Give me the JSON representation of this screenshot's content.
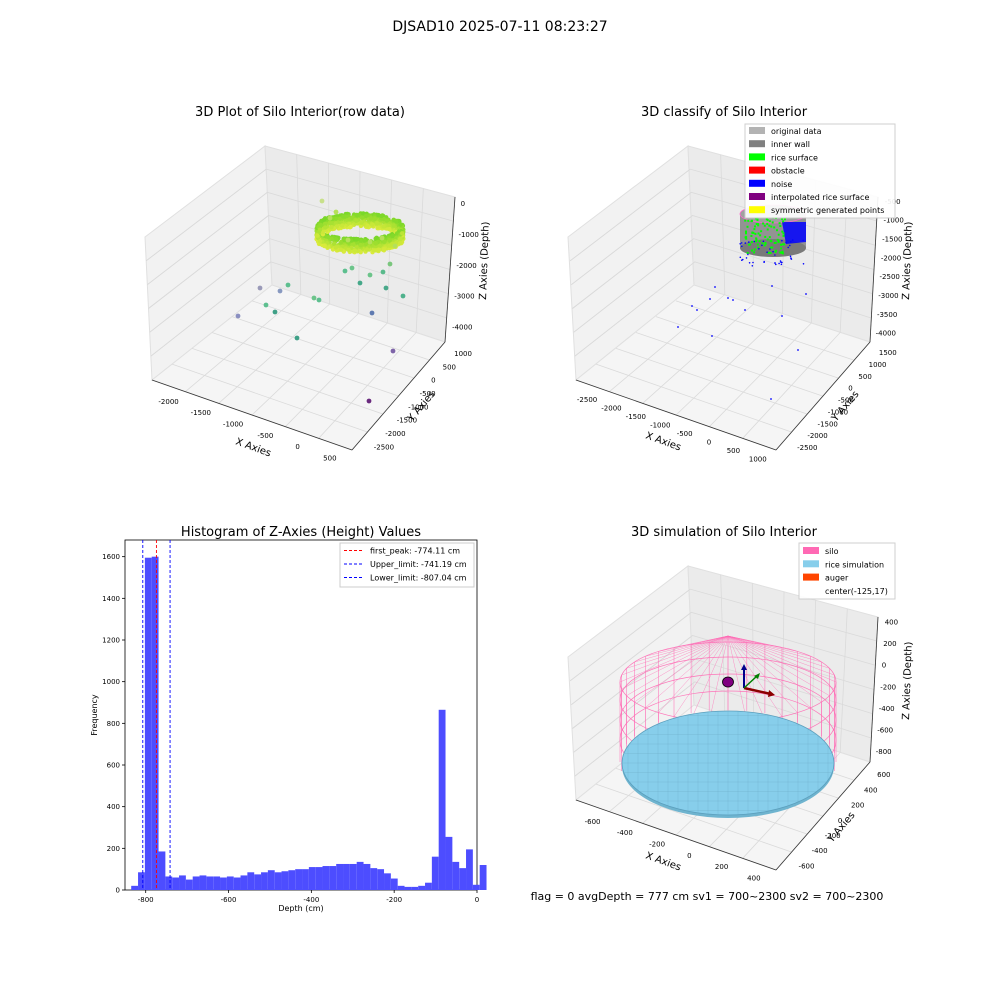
{
  "figure": {
    "suptitle": "DJSAD10 2025-07-11 08:23:27",
    "status_line": "flag = 0     avgDepth = 777 cm  sv1 = 700~2300  sv2 = 700~2300"
  },
  "colors": {
    "original_data": "#b3b3b3",
    "inner_wall": "#808080",
    "rice_surface": "#00ff00",
    "obstacle": "#ff0000",
    "noise": "#0000ff",
    "interpolated_rice_surface": "#800080",
    "symmetric_generated_points": "#ffff00",
    "silo": "#ff69b4",
    "rice_simulation": "#87ceeb",
    "auger": "#ff4500",
    "hist_bar": "#4d4dff",
    "first_peak_line": "#ff0000",
    "limit_line": "#0000ff",
    "pane": "#f2f2f2",
    "grid": "#dadada"
  },
  "panels": {
    "raw": {
      "title": "3D Plot of Silo Interior(row data)",
      "xlabel": "X Axies",
      "ylabel": "Y Axies",
      "zlabel": "Z Axies (Depth)",
      "xticks": [
        "-2000",
        "-1500",
        "-1000",
        "-500",
        "0",
        "500"
      ],
      "yticks": [
        "1000",
        "500",
        "0",
        "-500",
        "-1000",
        "-1500",
        "-2000",
        "-2500"
      ],
      "zticks": [
        "0",
        "-1000",
        "-2000",
        "-3000",
        "-4000"
      ]
    },
    "classify": {
      "title": "3D classify of Silo Interior",
      "xlabel": "X Axies",
      "ylabel": "Y Axies",
      "zlabel": "Z Axies (Depth)",
      "xticks": [
        "-2500",
        "-2000",
        "-1500",
        "-1000",
        "-500",
        "0",
        "500",
        "1000"
      ],
      "yticks": [
        "1500",
        "1000",
        "500",
        "0",
        "-500",
        "-1000",
        "-1500",
        "-2000",
        "-2500"
      ],
      "zticks": [
        "-500",
        "-1000",
        "-1500",
        "-2000",
        "-2500",
        "-3000",
        "-3500",
        "-4000"
      ],
      "legend": [
        {
          "label": "original data",
          "color_key": "original_data"
        },
        {
          "label": "inner wall",
          "color_key": "inner_wall"
        },
        {
          "label": "rice surface",
          "color_key": "rice_surface"
        },
        {
          "label": "obstacle",
          "color_key": "obstacle"
        },
        {
          "label": "noise",
          "color_key": "noise"
        },
        {
          "label": "interpolated rice surface",
          "color_key": "interpolated_rice_surface"
        },
        {
          "label": "symmetric generated points",
          "color_key": "symmetric_generated_points"
        }
      ]
    },
    "sim": {
      "title": "3D simulation of Silo Interior",
      "xlabel": "X Axies",
      "ylabel": "Y Axies",
      "zlabel": "Z Axies (Depth)",
      "xticks": [
        "-600",
        "-400",
        "-200",
        "0",
        "200",
        "400"
      ],
      "yticks": [
        "600",
        "400",
        "200",
        "0",
        "-200",
        "-400",
        "-600"
      ],
      "zticks": [
        "400",
        "200",
        "0",
        "-200",
        "-400",
        "-600",
        "-800"
      ],
      "legend": [
        {
          "label": "silo",
          "color_key": "silo"
        },
        {
          "label": "rice simulation",
          "color_key": "rice_simulation"
        },
        {
          "label": "auger",
          "color_key": "auger"
        },
        {
          "label": "center(-125,17)",
          "color_key": ""
        }
      ]
    }
  },
  "chart_data": [
    {
      "type": "bar",
      "title": "Histogram of Z-Axies (Height) Values",
      "xlabel": "Depth (cm)",
      "ylabel": "Frequency",
      "xlim": [
        -850,
        0
      ],
      "ylim": [
        0,
        1680
      ],
      "xticks": [
        -800,
        -600,
        -400,
        -200,
        0
      ],
      "yticks": [
        0,
        200,
        400,
        600,
        800,
        1000,
        1200,
        1400,
        1600
      ],
      "bin_width": 16.5,
      "bins_start": -835,
      "values": [
        20,
        85,
        1595,
        1600,
        185,
        65,
        60,
        70,
        50,
        65,
        70,
        65,
        65,
        60,
        65,
        60,
        70,
        85,
        75,
        85,
        95,
        85,
        90,
        95,
        100,
        100,
        110,
        110,
        115,
        115,
        125,
        125,
        125,
        135,
        125,
        105,
        100,
        80,
        55,
        20,
        15,
        15,
        20,
        35,
        160,
        865,
        255,
        135,
        105,
        195,
        25,
        120
      ],
      "vlines": [
        {
          "name": "first_peak: -774.11 cm",
          "value": -774.11,
          "color_key": "first_peak_line"
        },
        {
          "name": "Upper_limit: -741.19 cm",
          "value": -741.19,
          "color_key": "limit_line"
        },
        {
          "name": "Lower_limit: -807.04 cm",
          "value": -807.04,
          "color_key": "limit_line"
        }
      ],
      "legend": "top-right"
    }
  ]
}
